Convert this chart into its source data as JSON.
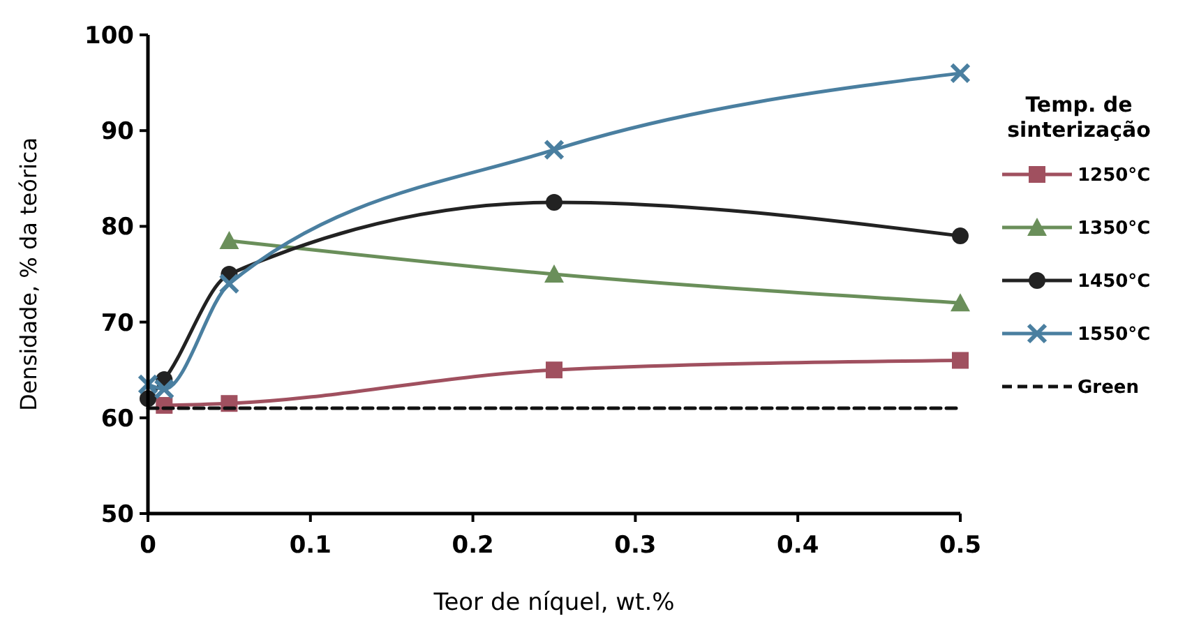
{
  "chart_data": {
    "type": "line",
    "xlabel": "Teor de níquel, wt.%",
    "ylabel": "Densidade, % da teórica",
    "legend_title": "Temp. de sinterização",
    "legend": "right",
    "grid": false,
    "x": [
      0,
      0.01,
      0.05,
      0.25,
      0.5
    ],
    "xlim": [
      0,
      0.5
    ],
    "xticks": [
      0,
      0.1,
      0.2,
      0.3,
      0.4,
      0.5
    ],
    "ylim": [
      50,
      100
    ],
    "yticks": [
      50,
      60,
      70,
      80,
      90,
      100
    ],
    "series": [
      {
        "name": "1250°C",
        "color": "#a0505f",
        "marker": "square",
        "values": [
          null,
          61.3,
          61.5,
          65,
          66
        ]
      },
      {
        "name": "1350°C",
        "color": "#6a8f5a",
        "marker": "triangle",
        "values": [
          null,
          null,
          78.5,
          75,
          72
        ]
      },
      {
        "name": "1450°C",
        "color": "#222222",
        "marker": "circle",
        "values": [
          62,
          64,
          75,
          82.5,
          79
        ]
      },
      {
        "name": "1550°C",
        "color": "#4a7fa0",
        "marker": "cross",
        "values": [
          63.5,
          63,
          74,
          88,
          96
        ]
      },
      {
        "name": "Green",
        "color": "#111111",
        "marker": "none",
        "line_style": "dashed",
        "values": [
          61,
          61,
          61,
          61,
          61
        ]
      }
    ]
  }
}
